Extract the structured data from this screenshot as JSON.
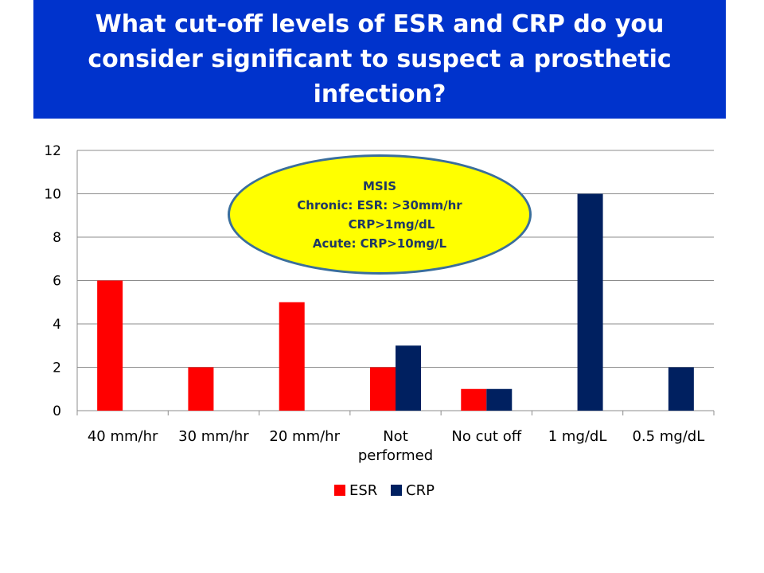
{
  "title": "What cut-off levels of ESR and CRP do you consider significant to suspect a prosthetic infection?",
  "callout": {
    "line1": "MSIS",
    "line2": "Chronic: ESR: >30mm/hr",
    "line3": "CRP>1mg/dL",
    "line4": "Acute: CRP>10mg/L"
  },
  "colors": {
    "banner": "#0033cc",
    "esr": "#ff0000",
    "crp": "#002060",
    "callout": "#ffff00"
  },
  "chart_data": {
    "type": "bar",
    "categories": [
      "40 mm/hr",
      "30 mm/hr",
      "20 mm/hr",
      "Not performed",
      "No cut off",
      "1 mg/dL",
      "0.5 mg/dL"
    ],
    "series": [
      {
        "name": "ESR",
        "values": [
          6,
          2,
          5,
          2,
          1,
          null,
          null
        ]
      },
      {
        "name": "CRP",
        "values": [
          null,
          null,
          null,
          3,
          1,
          10,
          2
        ]
      }
    ],
    "ylim": [
      0,
      12
    ],
    "yticks": [
      0,
      2,
      4,
      6,
      8,
      10,
      12
    ],
    "grid": true,
    "legend": "bottom"
  }
}
